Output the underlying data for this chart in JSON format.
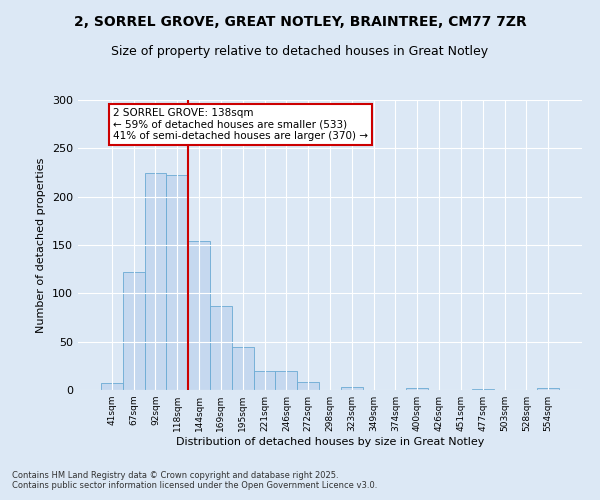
{
  "title1": "2, SORREL GROVE, GREAT NOTLEY, BRAINTREE, CM77 7ZR",
  "title2": "Size of property relative to detached houses in Great Notley",
  "xlabel": "Distribution of detached houses by size in Great Notley",
  "ylabel": "Number of detached properties",
  "categories": [
    "41sqm",
    "67sqm",
    "92sqm",
    "118sqm",
    "144sqm",
    "169sqm",
    "195sqm",
    "221sqm",
    "246sqm",
    "272sqm",
    "298sqm",
    "323sqm",
    "349sqm",
    "374sqm",
    "400sqm",
    "426sqm",
    "451sqm",
    "477sqm",
    "503sqm",
    "528sqm",
    "554sqm"
  ],
  "values": [
    7,
    122,
    225,
    222,
    154,
    87,
    44,
    20,
    20,
    8,
    0,
    3,
    0,
    0,
    2,
    0,
    0,
    1,
    0,
    0,
    2
  ],
  "bar_color": "#c5d8ef",
  "bar_edgecolor": "#6aaad4",
  "vline_color": "#cc0000",
  "annotation_text": "2 SORREL GROVE: 138sqm\n← 59% of detached houses are smaller (533)\n41% of semi-detached houses are larger (370) →",
  "annotation_box_color": "#ffffff",
  "annotation_box_edgecolor": "#cc0000",
  "ylim": [
    0,
    300
  ],
  "yticks": [
    0,
    50,
    100,
    150,
    200,
    250,
    300
  ],
  "footnote": "Contains HM Land Registry data © Crown copyright and database right 2025.\nContains public sector information licensed under the Open Government Licence v3.0.",
  "background_color": "#dce8f5",
  "plot_bg_color": "#dce8f5",
  "title_fontsize": 10,
  "subtitle_fontsize": 9,
  "ylabel_fontsize": 8,
  "xlabel_fontsize": 8
}
